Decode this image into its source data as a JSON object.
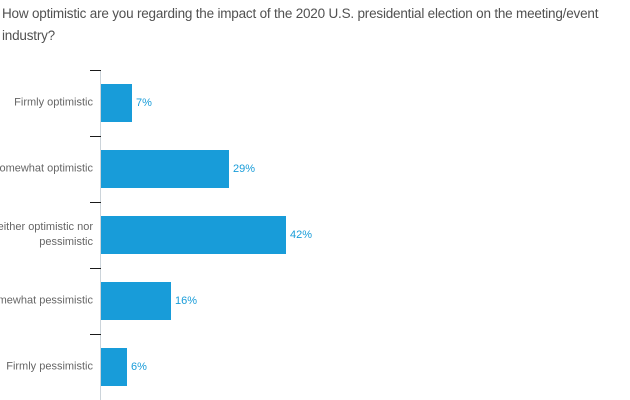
{
  "chart_data": {
    "type": "bar",
    "orientation": "horizontal",
    "title": "How optimistic are you regarding the impact of the 2020 U.S. presidential election on the meeting/event industry?",
    "categories": [
      "Firmly optimistic",
      "Somewhat optimistic",
      "Neither optimistic nor pessimistic",
      "Somewhat pessimistic",
      "Firmly pessimistic"
    ],
    "values": [
      7,
      29,
      42,
      16,
      6
    ],
    "value_labels": [
      "7%",
      "29%",
      "42%",
      "16%",
      "6%"
    ],
    "unit": "%",
    "xlim": [
      0,
      45
    ],
    "grid": false,
    "legend": false,
    "bar_color": "#189cd9",
    "value_label_color": "#189cd9",
    "category_label_color": "#666666",
    "title_color": "#515151",
    "axis_line_color": "#ccd4da",
    "tick_color": "#1a1a1a"
  }
}
